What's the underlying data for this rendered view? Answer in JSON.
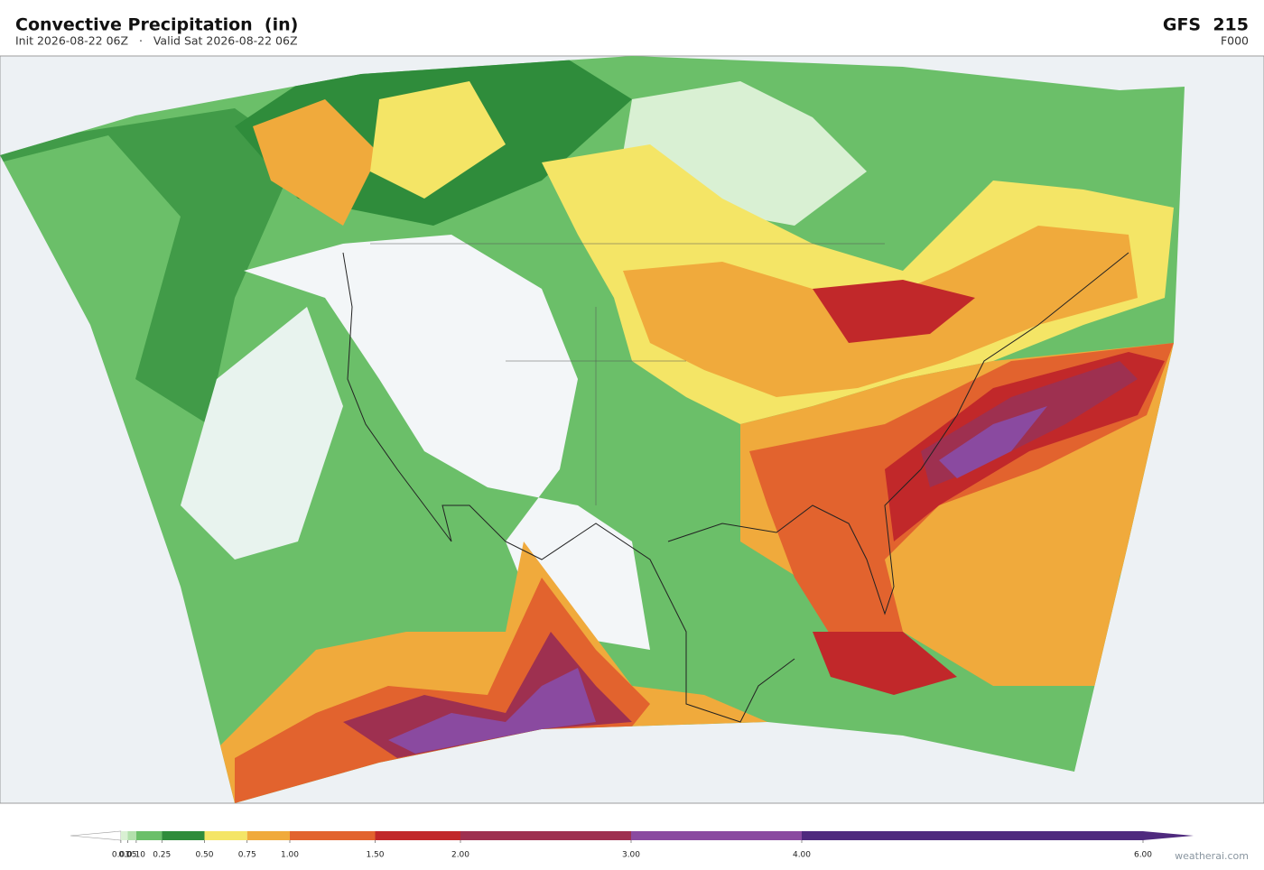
{
  "header": {
    "title": "Convective Precipitation  (in)",
    "subtitle": "Init 2026-08-22 06Z   ·   Valid Sat 2026-08-22 06Z",
    "model": "GFS  215",
    "forecast_hour": "F000"
  },
  "colorbar": {
    "levels": [
      {
        "value": 0.01,
        "label": "0.01"
      },
      {
        "value": 0.05,
        "label": "0.05"
      },
      {
        "value": 0.1,
        "label": "0.10"
      },
      {
        "value": 0.25,
        "label": "0.25"
      },
      {
        "value": 0.5,
        "label": "0.50"
      },
      {
        "value": 0.75,
        "label": "0.75"
      },
      {
        "value": 1,
        "label": "1.00"
      },
      {
        "value": 1.5,
        "label": "1.50"
      },
      {
        "value": 2,
        "label": "2.00"
      },
      {
        "value": 3,
        "label": "3.00"
      },
      {
        "value": 4,
        "label": "4.00"
      },
      {
        "value": 6,
        "label": "6.00"
      }
    ],
    "colors": [
      "#ffffff",
      "#d9f0d3",
      "#b3e0ac",
      "#6bbf69",
      "#2f8c3b",
      "#f4e566",
      "#f0aa3c",
      "#e2632e",
      "#c1282a",
      "#9e3050",
      "#8a4aa0",
      "#4f2a7e",
      "#4f2a7e"
    ]
  },
  "credit": "weatherai.com"
}
